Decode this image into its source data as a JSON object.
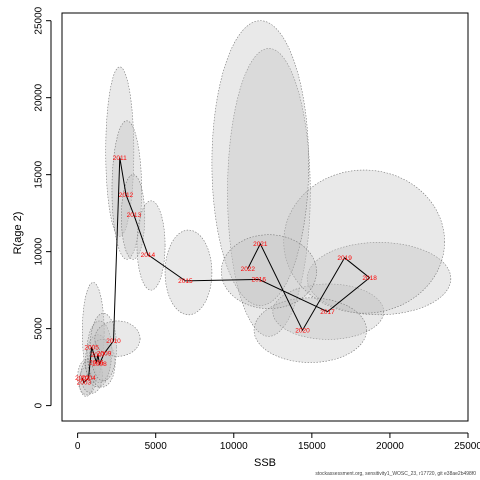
{
  "chart_data": {
    "type": "scatter",
    "xlabel": "SSB",
    "ylabel": "R(age 2)",
    "xlim": [
      -1000,
      25000
    ],
    "ylim": [
      -1000,
      25500
    ],
    "xticks": [
      0,
      5000,
      10000,
      15000,
      20000,
      25000
    ],
    "yticks": [
      0,
      5000,
      10000,
      15000,
      20000,
      25000
    ],
    "grid": false,
    "colors": {
      "points": "#ff0000",
      "path": "#000000",
      "ellipse_fill": "#c0c0c0",
      "ellipse_stroke": "#777777"
    },
    "points": [
      {
        "year": "2002",
        "ssb": 300,
        "rec": 1800,
        "ssb_ci": [
          0,
          1200
        ],
        "rec_ci": [
          700,
          3000
        ]
      },
      {
        "year": "2003",
        "ssb": 400,
        "rec": 1500,
        "ssb_ci": [
          100,
          1000
        ],
        "rec_ci": [
          600,
          2500
        ]
      },
      {
        "year": "2004",
        "ssb": 700,
        "rec": 1800,
        "ssb_ci": [
          200,
          1600
        ],
        "rec_ci": [
          800,
          3100
        ]
      },
      {
        "year": "2005",
        "ssb": 900,
        "rec": 3800,
        "ssb_ci": [
          300,
          1700
        ],
        "rec_ci": [
          1500,
          8000
        ]
      },
      {
        "year": "2006",
        "ssb": 1200,
        "rec": 2800,
        "ssb_ci": [
          500,
          2100
        ],
        "rec_ci": [
          1200,
          4600
        ]
      },
      {
        "year": "2007",
        "ssb": 1300,
        "rec": 3300,
        "ssb_ci": [
          600,
          2200
        ],
        "rec_ci": [
          1500,
          5500
        ]
      },
      {
        "year": "2008",
        "ssb": 1400,
        "rec": 2700,
        "ssb_ci": [
          700,
          2400
        ],
        "rec_ci": [
          1200,
          4300
        ]
      },
      {
        "year": "2009",
        "ssb": 1700,
        "rec": 3400,
        "ssb_ci": [
          800,
          2500
        ],
        "rec_ci": [
          1600,
          6000
        ]
      },
      {
        "year": "2010",
        "ssb": 2300,
        "rec": 4200,
        "ssb_ci": [
          1100,
          4000
        ],
        "rec_ci": [
          3200,
          5500
        ]
      },
      {
        "year": "2011",
        "ssb": 2700,
        "rec": 16100,
        "ssb_ci": [
          1800,
          3600
        ],
        "rec_ci": [
          11000,
          22000
        ]
      },
      {
        "year": "2012",
        "ssb": 3100,
        "rec": 13700,
        "ssb_ci": [
          2200,
          4100
        ],
        "rec_ci": [
          9500,
          18500
        ]
      },
      {
        "year": "2013",
        "ssb": 3600,
        "rec": 12400,
        "ssb_ci": [
          2800,
          4300
        ],
        "rec_ci": [
          9500,
          15000
        ]
      },
      {
        "year": "2014",
        "ssb": 4500,
        "rec": 9800,
        "ssb_ci": [
          3800,
          5600
        ],
        "rec_ci": [
          7500,
          13300
        ]
      },
      {
        "year": "2015",
        "ssb": 6900,
        "rec": 8100,
        "ssb_ci": [
          5600,
          8600
        ],
        "rec_ci": [
          5900,
          11400
        ]
      },
      {
        "year": "2016",
        "ssb": 11600,
        "rec": 8200,
        "ssb_ci": [
          9600,
          14900
        ],
        "rec_ci": [
          4500,
          23200
        ]
      },
      {
        "year": "2017",
        "ssb": 16000,
        "rec": 6100,
        "ssb_ci": [
          12500,
          19600
        ],
        "rec_ci": [
          4300,
          7900
        ]
      },
      {
        "year": "2018",
        "ssb": 18700,
        "rec": 8300,
        "ssb_ci": [
          14700,
          23900
        ],
        "rec_ci": [
          5900,
          10600
        ]
      },
      {
        "year": "2019",
        "ssb": 17100,
        "rec": 9600,
        "ssb_ci": [
          13200,
          23500
        ],
        "rec_ci": [
          6000,
          15300
        ]
      },
      {
        "year": "2020",
        "ssb": 14400,
        "rec": 4900,
        "ssb_ci": [
          11300,
          18500
        ],
        "rec_ci": [
          2800,
          7000
        ]
      },
      {
        "year": "2021",
        "ssb": 11700,
        "rec": 10500,
        "ssb_ci": [
          8600,
          14800
        ],
        "rec_ci": [
          6500,
          25000
        ]
      },
      {
        "year": "2022",
        "ssb": 10900,
        "rec": 8900,
        "ssb_ci": [
          9200,
          15300
        ],
        "rec_ci": [
          6300,
          11100
        ]
      }
    ]
  },
  "credit": "stockassessment.org, sensitivity1_WOSC_23, r17720, git e38ae2b498f0"
}
